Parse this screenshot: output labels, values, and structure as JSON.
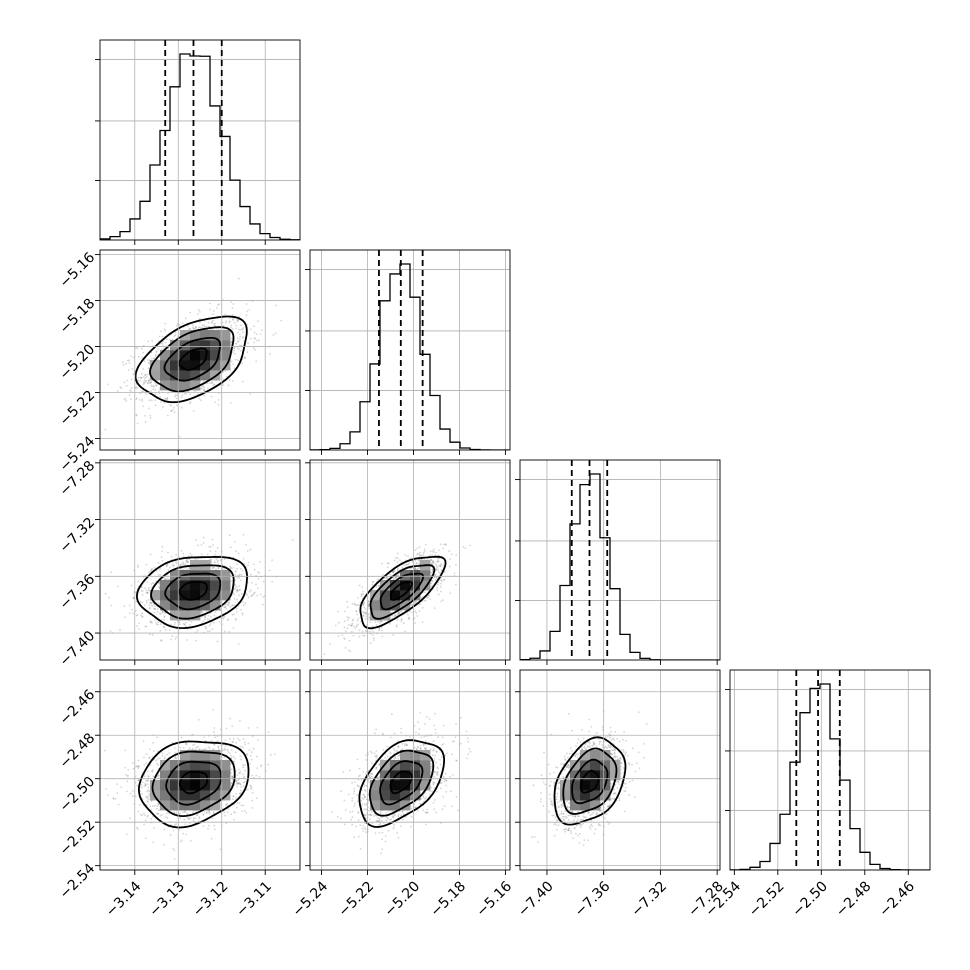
{
  "chart_data": {
    "type": "corner",
    "n_params": 4,
    "parameters": [
      {
        "center": -3.1265,
        "sigma": 0.0063,
        "quantiles": [
          -3.133,
          -3.1265,
          -3.12
        ],
        "range": [
          -3.148,
          -3.102
        ],
        "ticks": [
          -3.14,
          -3.13,
          -3.12,
          -3.11
        ],
        "tick_labels": [
          "−3.14",
          "−3.13",
          "−3.12",
          "−3.11"
        ]
      },
      {
        "center": -5.2055,
        "sigma": 0.0092,
        "quantiles": [
          -5.215,
          -5.2055,
          -5.196
        ],
        "range": [
          -5.245,
          -5.158
        ],
        "ticks": [
          -5.24,
          -5.22,
          -5.2,
          -5.18,
          -5.16
        ],
        "tick_labels": [
          "−5.24",
          "−5.22",
          "−5.20",
          "−5.18",
          "−5.16"
        ]
      },
      {
        "center": -7.37,
        "sigma": 0.0125,
        "quantiles": [
          -7.3825,
          -7.37,
          -7.3575
        ],
        "range": [
          -7.419,
          -7.278
        ],
        "ticks": [
          -7.4,
          -7.36,
          -7.32,
          -7.28
        ],
        "tick_labels": [
          "−7.40",
          "−7.36",
          "−7.32",
          "−7.28"
        ]
      },
      {
        "center": -2.5015,
        "sigma": 0.0098,
        "quantiles": [
          -2.5115,
          -2.5015,
          -2.4915
        ],
        "range": [
          -2.542,
          -2.45
        ],
        "ticks": [
          -2.54,
          -2.52,
          -2.5,
          -2.48,
          -2.46
        ],
        "tick_labels": [
          "−2.54",
          "−2.52",
          "−2.50",
          "−2.48",
          "−2.46"
        ]
      }
    ],
    "correlations": [
      [
        1,
        0.45,
        0.2,
        0.2
      ],
      [
        0.45,
        1,
        0.7,
        0.45
      ],
      [
        0.2,
        0.7,
        1,
        0.35
      ],
      [
        0.2,
        0.45,
        0.35,
        1
      ]
    ],
    "hist_bins": 20,
    "contour_levels_sigma": [
      0.5,
      1.0,
      1.5,
      2.0
    ],
    "grid": true
  }
}
